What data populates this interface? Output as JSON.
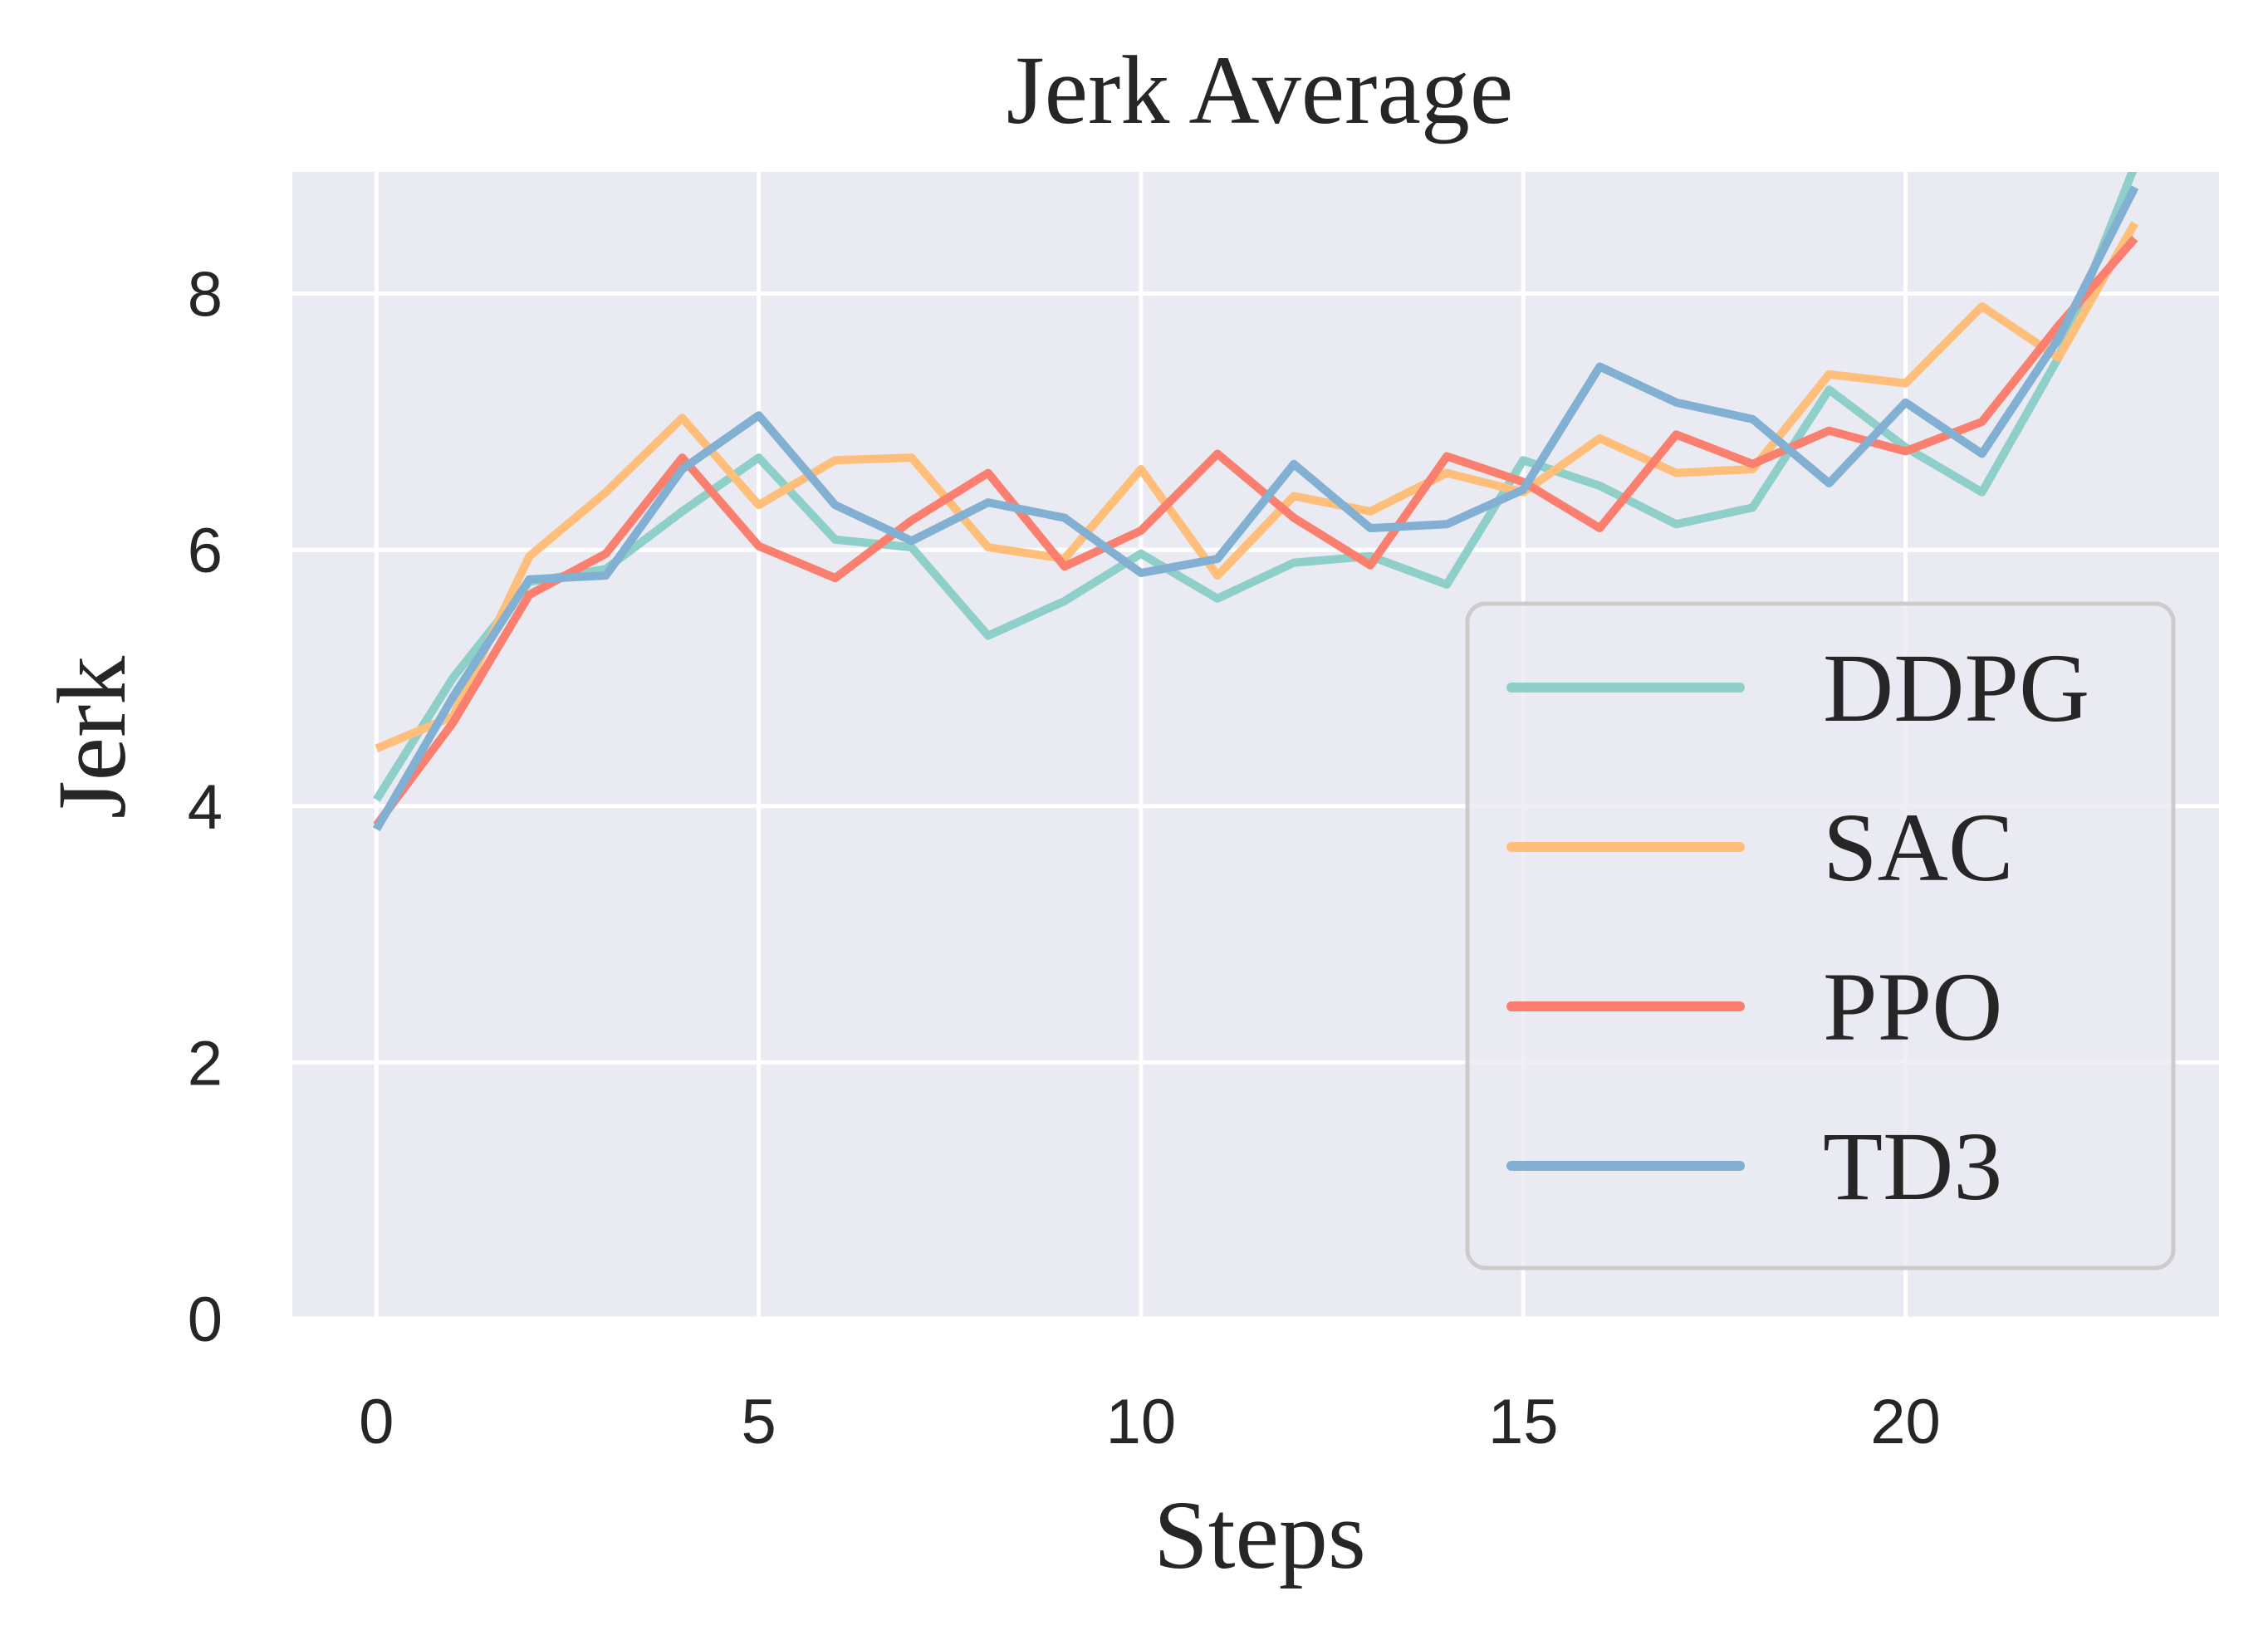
{
  "chart_data": {
    "type": "line",
    "title": "Jerk Average",
    "xlabel": "Steps",
    "ylabel": "Jerk",
    "xlim": [
      -1.1,
      24.1
    ],
    "ylim": [
      0,
      8.95
    ],
    "xticks": [
      0,
      5,
      10,
      15,
      20
    ],
    "yticks": [
      0,
      2,
      4,
      6,
      8
    ],
    "grid": true,
    "legend_position": "lower-right",
    "colors": {
      "background": "#eaeaf2",
      "grid": "#ffffff",
      "text": "#262626"
    },
    "x": [
      0,
      1,
      2,
      3,
      4,
      5,
      6,
      7,
      8,
      9,
      10,
      11,
      12,
      13,
      14,
      15,
      16,
      17,
      18,
      19,
      20,
      21,
      22,
      23
    ],
    "series": [
      {
        "name": "DDPG",
        "color": "#8ecfc9",
        "values": [
          4.05,
          5.0,
          5.75,
          5.85,
          6.3,
          6.72,
          6.08,
          6.02,
          5.33,
          5.6,
          5.97,
          5.62,
          5.9,
          5.95,
          5.73,
          6.7,
          6.5,
          6.2,
          6.33,
          7.25,
          6.8,
          6.45,
          7.5,
          9.0
        ]
      },
      {
        "name": "SAC",
        "color": "#ffbe7a",
        "values": [
          4.45,
          4.7,
          5.95,
          6.45,
          7.03,
          6.35,
          6.7,
          6.72,
          6.02,
          5.93,
          6.63,
          5.8,
          6.42,
          6.3,
          6.6,
          6.45,
          6.87,
          6.6,
          6.63,
          7.37,
          7.3,
          7.9,
          7.5,
          8.55
        ]
      },
      {
        "name": "PPO",
        "color": "#fa7f6f",
        "values": [
          3.85,
          4.65,
          5.65,
          5.97,
          6.72,
          6.03,
          5.78,
          6.23,
          6.6,
          5.87,
          6.15,
          6.75,
          6.25,
          5.88,
          6.73,
          6.53,
          6.17,
          6.9,
          6.67,
          6.93,
          6.77,
          7.0,
          7.75,
          8.43
        ]
      },
      {
        "name": "TD3",
        "color": "#82b0d2",
        "values": [
          3.82,
          4.85,
          5.77,
          5.8,
          6.63,
          7.05,
          6.35,
          6.07,
          6.37,
          6.25,
          5.82,
          5.93,
          6.67,
          6.17,
          6.2,
          6.47,
          7.43,
          7.15,
          7.02,
          6.52,
          7.15,
          6.75,
          7.65,
          8.83
        ]
      }
    ]
  }
}
